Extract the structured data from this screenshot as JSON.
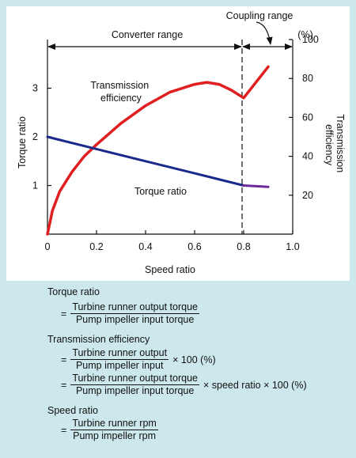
{
  "chart_data": {
    "type": "line",
    "xlabel": "Speed ratio",
    "ylabel_left": "Torque ratio",
    "ylabel_right": "Transmission efficiency",
    "right_unit": "(%)",
    "x_ticks": [
      "0",
      "0.2",
      "0.4",
      "0.6",
      "0.8",
      "1.0"
    ],
    "y_left_ticks": [
      "1",
      "2",
      "3"
    ],
    "y_right_ticks": [
      "20",
      "40",
      "60",
      "80",
      "100"
    ],
    "xlim": [
      0,
      1.0
    ],
    "ylim_left": [
      0,
      4
    ],
    "ylim_right": [
      0,
      100
    ],
    "range_labels": {
      "converter": "Converter range",
      "coupling": "Coupling range"
    },
    "series": [
      {
        "name": "Transmission efficiency",
        "axis": "right",
        "color": "#e02020",
        "x": [
          0,
          0.02,
          0.05,
          0.1,
          0.15,
          0.2,
          0.3,
          0.4,
          0.5,
          0.6,
          0.65,
          0.7,
          0.75,
          0.8,
          0.85,
          0.9
        ],
        "y": [
          0,
          12,
          22,
          32,
          40,
          46,
          57,
          66,
          73,
          77,
          78,
          77,
          74,
          70,
          78,
          86
        ]
      },
      {
        "name": "Torque ratio",
        "axis": "left",
        "color": "#1a2a8a",
        "x": [
          0,
          0.2,
          0.4,
          0.6,
          0.8
        ],
        "y": [
          2.0,
          1.75,
          1.5,
          1.25,
          1.0
        ]
      },
      {
        "name": "",
        "axis": "left",
        "color": "#6a2a9a",
        "x": [
          0.8,
          0.9
        ],
        "y": [
          1.0,
          0.97
        ]
      }
    ]
  },
  "formulas": {
    "torque_ratio": {
      "title": "Torque ratio",
      "num": "Turbine runner output torque",
      "den": "Pump impeller input torque"
    },
    "efficiency": {
      "title": "Transmission efficiency",
      "num1": "Turbine runner output",
      "den1": "Pump impeller input",
      "suffix1": "× 100 (%)",
      "num2": "Turbine runner output torque",
      "den2": "Pump impeller input torque",
      "suffix2": "× speed ratio × 100 (%)"
    },
    "speed_ratio": {
      "title": "Speed ratio",
      "num": "Turbine runner rpm",
      "den": "Pump impeller rpm"
    },
    "equals": "="
  }
}
